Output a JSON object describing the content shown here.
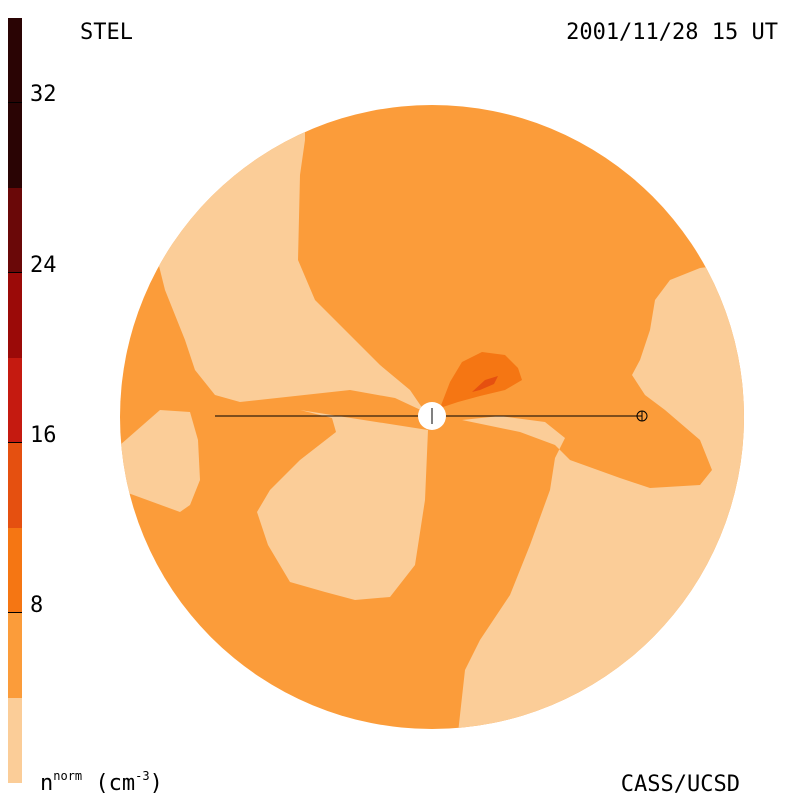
{
  "header": {
    "left": "STEL",
    "right": "2001/11/28 15 UT"
  },
  "footer": {
    "right": "CASS/UCSD",
    "unit_base": "n",
    "unit_sup": "norm",
    "unit_rest": " (cm",
    "unit_exp": "-3",
    "unit_close": ")"
  },
  "colorbar": {
    "ticks": [
      "32",
      "24",
      "16",
      "8"
    ],
    "colors": [
      "#fbcd98",
      "#fb9c3a",
      "#f57613",
      "#e55010",
      "#c51a10",
      "#9b0a08",
      "#6a0808",
      "#2a0404"
    ]
  },
  "plot": {
    "colors": {
      "background_level": "#fb9c3a",
      "low_level": "#fbcd98",
      "mid_level": "#f57613",
      "high_level": "#e55010",
      "sun": "#ffffff",
      "line": "#000000"
    }
  }
}
